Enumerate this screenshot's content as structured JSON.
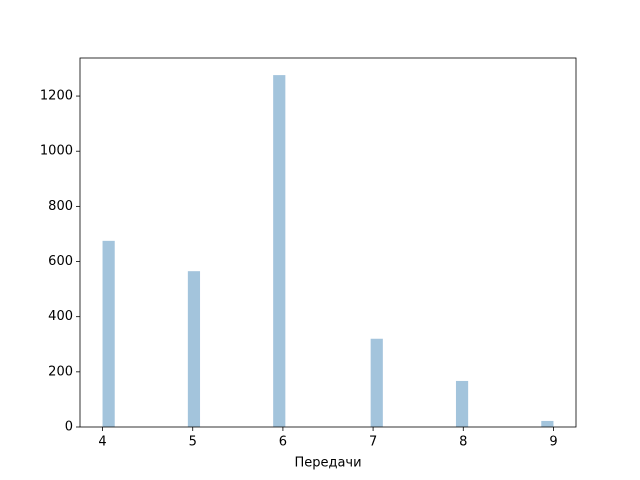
{
  "chart_data": {
    "type": "histogram",
    "xlabel": "Передачи",
    "bins": [
      4,
      4.1351,
      4.2703,
      4.4054,
      4.5405,
      4.6757,
      4.8108,
      4.9459,
      5.0811,
      5.2162,
      5.3514,
      5.4865,
      5.6216,
      5.7568,
      5.8919,
      6.027,
      6.1622,
      6.2973,
      6.4324,
      6.5676,
      6.7027,
      6.8378,
      6.973,
      7.1081,
      7.2432,
      7.3784,
      7.5135,
      7.6486,
      7.7838,
      7.9189,
      8.0541,
      8.1892,
      8.3243,
      8.4595,
      8.5946,
      8.7297,
      8.8649,
      9
    ],
    "values": [
      675,
      0,
      0,
      0,
      0,
      0,
      0,
      565,
      0,
      0,
      0,
      0,
      0,
      0,
      1276,
      0,
      0,
      0,
      0,
      0,
      0,
      0,
      320,
      0,
      0,
      0,
      0,
      0,
      0,
      167,
      0,
      0,
      0,
      0,
      0,
      0,
      22
    ],
    "color": "#a3c4dc",
    "xlim": [
      3.75,
      9.25
    ],
    "xticks": [
      4,
      5,
      6,
      7,
      8,
      9
    ],
    "ylim": [
      0,
      1338
    ],
    "yticks": [
      0,
      200,
      400,
      600,
      800,
      1000,
      1200
    ]
  }
}
